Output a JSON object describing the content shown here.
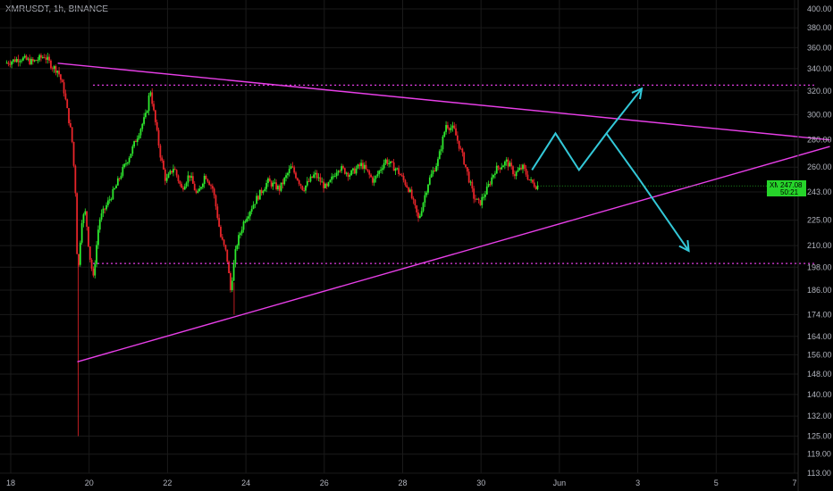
{
  "header": {
    "symbol_label": "XMRUSDT, 1h, BINANCE"
  },
  "badge": {
    "symbol": "XMRUSDT",
    "price": "247.08",
    "countdown": "50:21"
  },
  "colors": {
    "background": "#000000",
    "up": "#2ee82e",
    "down": "#e8252a",
    "trendline": "#e83fe8",
    "projection": "#33c8d8",
    "axis_text": "#b2b5be",
    "grid": "#1a1a1a"
  },
  "chart_data": {
    "type": "candlestick",
    "symbol": "XMRUSDT",
    "interval": "1h",
    "exchange": "BINANCE",
    "y_scale": "log",
    "ylim": [
      111,
      410
    ],
    "y_ticks": [
      400,
      380,
      360,
      340,
      320,
      300,
      280,
      260,
      243,
      225,
      210,
      198,
      186,
      174,
      164,
      156,
      148,
      140,
      132,
      125,
      119,
      113
    ],
    "y_tick_labels": [
      "400.00",
      "380.00",
      "360.00",
      "340.00",
      "320.00",
      "300.00",
      "280.00",
      "260.00",
      "243.00",
      "225.00",
      "210.00",
      "198.00",
      "186.00",
      "174.00",
      "164.00",
      "156.00",
      "148.00",
      "140.00",
      "132.00",
      "125.00",
      "119.00",
      "113.00"
    ],
    "x_ticks": [
      {
        "label": "18",
        "day": 18
      },
      {
        "label": "20",
        "day": 20
      },
      {
        "label": "22",
        "day": 22
      },
      {
        "label": "24",
        "day": 24
      },
      {
        "label": "26",
        "day": 26
      },
      {
        "label": "28",
        "day": 28
      },
      {
        "label": "30",
        "day": 30
      },
      {
        "label": "Jun",
        "day": 32
      },
      {
        "label": "3",
        "day": 34
      },
      {
        "label": "5",
        "day": 36
      },
      {
        "label": "7",
        "day": 38
      }
    ],
    "price_path": [
      [
        17.9,
        345
      ],
      [
        18.3,
        350
      ],
      [
        18.6,
        346
      ],
      [
        18.9,
        352
      ],
      [
        19.1,
        342
      ],
      [
        19.25,
        338
      ],
      [
        19.4,
        320
      ],
      [
        19.5,
        300
      ],
      [
        19.6,
        282
      ],
      [
        19.7,
        240
      ],
      [
        19.75,
        190
      ],
      [
        19.85,
        225
      ],
      [
        19.95,
        230
      ],
      [
        20.05,
        205
      ],
      [
        20.15,
        192
      ],
      [
        20.3,
        225
      ],
      [
        20.5,
        235
      ],
      [
        20.7,
        245
      ],
      [
        20.9,
        258
      ],
      [
        21.1,
        270
      ],
      [
        21.3,
        285
      ],
      [
        21.5,
        300
      ],
      [
        21.6,
        322
      ],
      [
        21.7,
        300
      ],
      [
        21.85,
        270
      ],
      [
        22.0,
        250
      ],
      [
        22.2,
        260
      ],
      [
        22.4,
        245
      ],
      [
        22.6,
        255
      ],
      [
        22.8,
        240
      ],
      [
        23.0,
        255
      ],
      [
        23.2,
        245
      ],
      [
        23.4,
        215
      ],
      [
        23.55,
        205
      ],
      [
        23.65,
        186
      ],
      [
        23.8,
        210
      ],
      [
        24.0,
        225
      ],
      [
        24.3,
        238
      ],
      [
        24.6,
        250
      ],
      [
        24.9,
        245
      ],
      [
        25.2,
        260
      ],
      [
        25.5,
        245
      ],
      [
        25.8,
        255
      ],
      [
        26.1,
        245
      ],
      [
        26.4,
        260
      ],
      [
        26.7,
        255
      ],
      [
        27.0,
        262
      ],
      [
        27.3,
        250
      ],
      [
        27.6,
        265
      ],
      [
        27.9,
        258
      ],
      [
        28.2,
        245
      ],
      [
        28.45,
        225
      ],
      [
        28.7,
        250
      ],
      [
        28.95,
        265
      ],
      [
        29.15,
        292
      ],
      [
        29.35,
        288
      ],
      [
        29.6,
        265
      ],
      [
        29.85,
        240
      ],
      [
        30.0,
        235
      ],
      [
        30.2,
        245
      ],
      [
        30.4,
        258
      ],
      [
        30.7,
        264
      ],
      [
        30.9,
        255
      ],
      [
        31.1,
        260
      ],
      [
        31.3,
        250
      ],
      [
        31.45,
        247.08
      ]
    ],
    "drawings": {
      "upper_trendline": [
        [
          19.2,
          345
        ],
        [
          38.9,
          280
        ]
      ],
      "lower_trendline": [
        [
          19.7,
          153
        ],
        [
          38.9,
          275
        ]
      ],
      "resistance_dotted": [
        [
          20.1,
          325
        ],
        [
          38.5,
          325
        ]
      ],
      "support_dotted": [
        [
          20.1,
          200
        ],
        [
          38.5,
          200
        ]
      ],
      "projection_up": [
        [
          31.3,
          258
        ],
        [
          31.9,
          285
        ],
        [
          32.5,
          258
        ],
        [
          33.2,
          285
        ],
        [
          34.1,
          322
        ]
      ],
      "projection_down": [
        [
          33.2,
          285
        ],
        [
          34.0,
          253
        ],
        [
          35.3,
          207
        ]
      ]
    },
    "last_price": 247.08
  }
}
